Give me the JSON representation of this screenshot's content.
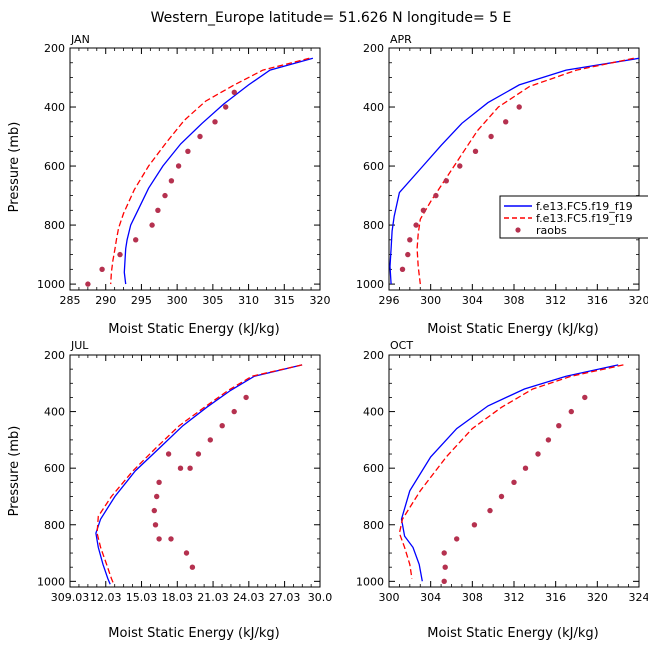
{
  "title": "Western_Europe  latitude= 51.626 N longitude= 5 E",
  "legend": {
    "entries": [
      "f.e13.FC5.f19_f19",
      "f.e13.FC5.f19_f19",
      "raobs"
    ]
  },
  "colors": {
    "model1": "#0000ff",
    "model2": "#ff0000",
    "raobs": "#b5314f"
  },
  "chart_data": [
    {
      "type": "line",
      "panel": "JAN",
      "xlabel": "Moist Static Energy (kJ/kg)",
      "ylabel": "Pressure (mb)",
      "xlim": [
        285,
        320
      ],
      "ylim": [
        1020,
        200
      ],
      "xticks": [
        285,
        290,
        295,
        300,
        305,
        310,
        315,
        320
      ],
      "xtick_labels": [
        "285",
        "290",
        "295",
        "300",
        "305",
        "310",
        "315",
        "320"
      ],
      "yticks": [
        200,
        400,
        600,
        800,
        1000
      ],
      "ytick_labels": [
        "200",
        "400",
        "600",
        "800",
        "1000"
      ],
      "series": [
        {
          "name": "f.e13.FC5.f19_f19",
          "style": "solid",
          "color": "#0000ff",
          "x": [
            319,
            313,
            310,
            306.5,
            303.5,
            300.5,
            298,
            296,
            294.5,
            293.5,
            293,
            292.8,
            292.7,
            292.6,
            292.8
          ],
          "y": [
            235,
            275,
            325,
            390,
            455,
            525,
            600,
            675,
            750,
            800,
            850,
            880,
            920,
            960,
            1000
          ]
        },
        {
          "name": "f.e13.FC5.f19_f19",
          "style": "dashed",
          "color": "#ff0000",
          "x": [
            318.5,
            312,
            308,
            304,
            301,
            298.5,
            296,
            294,
            292.5,
            291.8,
            291.5,
            291.3,
            291,
            290.8,
            290.7
          ],
          "y": [
            235,
            275,
            325,
            380,
            445,
            520,
            600,
            680,
            760,
            810,
            850,
            880,
            920,
            960,
            1000
          ]
        }
      ],
      "raobs": {
        "x": [
          308,
          306.8,
          305.3,
          303.2,
          301.5,
          300.2,
          299.2,
          298.3,
          297.3,
          296.5,
          294.2,
          292,
          289.5,
          287.5
        ],
        "y": [
          350,
          400,
          450,
          500,
          550,
          600,
          650,
          700,
          750,
          800,
          850,
          900,
          950,
          1000
        ]
      }
    },
    {
      "type": "line",
      "panel": "APR",
      "xlabel": "Moist Static Energy (kJ/kg)",
      "ylabel": "",
      "xlim": [
        296,
        320
      ],
      "ylim": [
        1020,
        200
      ],
      "xticks": [
        296,
        300,
        304,
        308,
        312,
        316,
        320
      ],
      "xtick_labels": [
        "296",
        "300",
        "304",
        "308",
        "312",
        "316",
        "320"
      ],
      "yticks": [
        200,
        400,
        600,
        800,
        1000
      ],
      "ytick_labels": [
        "200",
        "400",
        "600",
        "800",
        "1000"
      ],
      "series": [
        {
          "name": "f.e13.FC5.f19_f19",
          "style": "solid",
          "color": "#0000ff",
          "x": [
            320,
            313,
            308.5,
            305.5,
            303,
            301,
            299,
            297,
            296.5,
            296.3,
            296.2,
            296.1,
            296.2
          ],
          "y": [
            235,
            275,
            325,
            385,
            455,
            530,
            610,
            690,
            770,
            820,
            880,
            940,
            1000
          ]
        },
        {
          "name": "f.e13.FC5.f19_f19",
          "style": "dashed",
          "color": "#ff0000",
          "x": [
            319.5,
            314,
            309.5,
            306.5,
            304.5,
            303,
            301.5,
            300,
            299,
            298.8,
            298.7,
            298.8,
            299
          ],
          "y": [
            235,
            275,
            330,
            400,
            480,
            560,
            640,
            720,
            780,
            830,
            880,
            940,
            1000
          ]
        }
      ],
      "raobs": {
        "x": [
          308.5,
          307.2,
          305.8,
          304.3,
          302.8,
          301.5,
          300.5,
          299.3,
          298.6,
          298,
          297.8,
          297.3
        ],
        "y": [
          400,
          450,
          500,
          550,
          600,
          650,
          700,
          750,
          800,
          850,
          900,
          950
        ]
      }
    },
    {
      "type": "line",
      "panel": "JUL",
      "xlabel": "Moist Static Energy (kJ/kg)",
      "ylabel": "Pressure (mb)",
      "xlim": [
        309.03,
        330.0
      ],
      "ylim": [
        1020,
        200
      ],
      "xticks": [
        309.03,
        312.03,
        315.03,
        318.03,
        321.03,
        324.03,
        327.03,
        330.0
      ],
      "xtick_labels": [
        "309.03",
        "12.03",
        "15.03",
        "18.03",
        "21.03",
        "24.03",
        "27.03",
        "30.0"
      ],
      "yticks": [
        200,
        400,
        600,
        800,
        1000
      ],
      "ytick_labels": [
        "200",
        "400",
        "600",
        "800",
        "1000"
      ],
      "series": [
        {
          "name": "f.e13.FC5.f19_f19",
          "style": "solid",
          "color": "#0000ff",
          "x": [
            328.5,
            324.5,
            322.5,
            320.5,
            318.5,
            316.5,
            314.5,
            312.8,
            311.6,
            311.2,
            311.4,
            311.8,
            312.2,
            312.4
          ],
          "y": [
            235,
            275,
            325,
            385,
            450,
            530,
            610,
            700,
            780,
            830,
            880,
            940,
            990,
            1010
          ]
        },
        {
          "name": "f.e13.FC5.f19_f19",
          "style": "dashed",
          "color": "#ff0000",
          "x": [
            328.5,
            324.3,
            322.3,
            320.3,
            318.2,
            316.2,
            314.3,
            312.5,
            311.4,
            311.3,
            311.6,
            312.1,
            312.5,
            312.7
          ],
          "y": [
            235,
            275,
            325,
            385,
            450,
            530,
            610,
            700,
            770,
            830,
            880,
            940,
            990,
            1010
          ]
        }
      ],
      "raobs": {
        "x": [
          323.8,
          322.8,
          321.8,
          320.8,
          319.8,
          319.1,
          318.3,
          317.3,
          316.5,
          316.3,
          316.1,
          316.2,
          316.5,
          317.5,
          318.8,
          319.3
        ],
        "y": [
          350,
          400,
          450,
          500,
          550,
          600,
          600,
          550,
          650,
          700,
          750,
          800,
          850,
          850,
          900,
          950
        ]
      }
    },
    {
      "type": "line",
      "panel": "OCT",
      "xlabel": "Moist Static Energy (kJ/kg)",
      "ylabel": "",
      "xlim": [
        300,
        324
      ],
      "ylim": [
        1020,
        200
      ],
      "xticks": [
        300,
        304,
        308,
        312,
        316,
        320,
        324
      ],
      "xtick_labels": [
        "300",
        "304",
        "308",
        "312",
        "316",
        "320",
        "324"
      ],
      "yticks": [
        200,
        400,
        600,
        800,
        1000
      ],
      "ytick_labels": [
        "200",
        "400",
        "600",
        "800",
        "1000"
      ],
      "series": [
        {
          "name": "f.e13.FC5.f19_f19",
          "style": "solid",
          "color": "#0000ff",
          "x": [
            322,
            317,
            313,
            309.5,
            306.5,
            304,
            302,
            301.2,
            301.5,
            302.3,
            302.9,
            303.2
          ],
          "y": [
            235,
            275,
            320,
            380,
            460,
            560,
            680,
            780,
            840,
            880,
            940,
            1000
          ]
        },
        {
          "name": "f.e13.FC5.f19_f19",
          "style": "dashed",
          "color": "#ff0000",
          "x": [
            322.5,
            317.5,
            313.8,
            310.8,
            308,
            305.5,
            303,
            301.3,
            301,
            301.5,
            302,
            302.2
          ],
          "y": [
            235,
            275,
            320,
            385,
            460,
            560,
            680,
            780,
            830,
            880,
            940,
            990
          ]
        }
      ],
      "raobs": {
        "x": [
          318.8,
          317.5,
          316.3,
          315.3,
          314.3,
          313.1,
          312,
          310.8,
          309.7,
          308.2,
          306.5,
          305.3,
          305.4,
          305.3
        ],
        "y": [
          350,
          400,
          450,
          500,
          550,
          600,
          650,
          700,
          750,
          800,
          850,
          900,
          950,
          1000
        ]
      }
    }
  ]
}
